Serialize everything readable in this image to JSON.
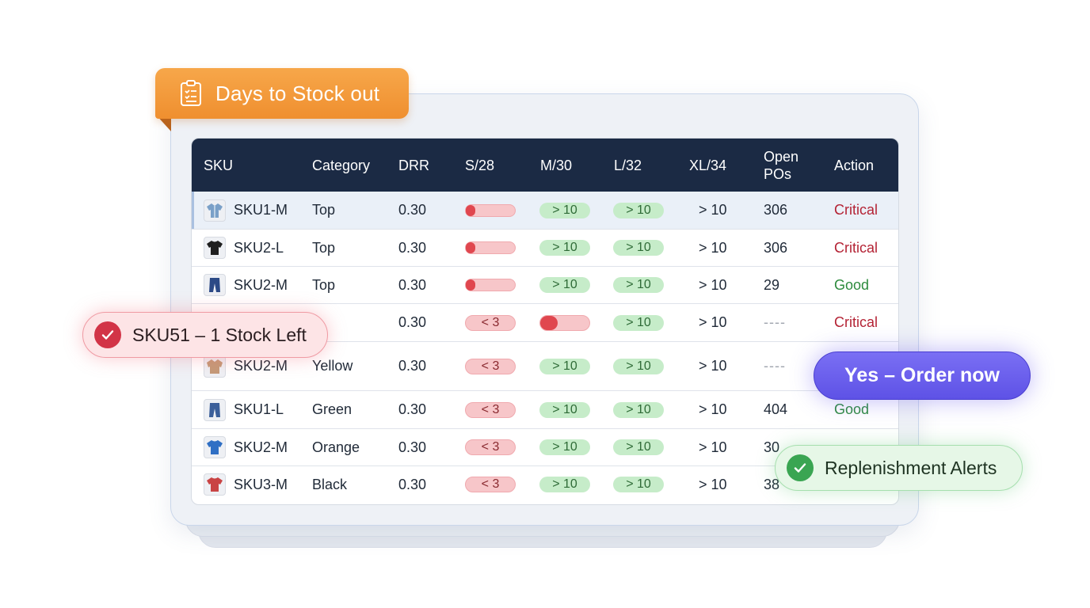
{
  "header": {
    "title": "Days to Stock out"
  },
  "table": {
    "columns": [
      "SKU",
      "Category",
      "DRR",
      "S/28",
      "M/30",
      "L/32",
      "XL/34",
      "Open POs",
      "Action"
    ],
    "columns_open_pos": [
      "Open",
      "POs"
    ],
    "rows": [
      {
        "sku": "SKU1-M",
        "icon": "shirt-icon",
        "icon_color": "#7aa0c8",
        "category": "Top",
        "drr": "0.30",
        "s28": {
          "kind": "bar",
          "fill": 0.2
        },
        "m30": {
          "kind": "pill",
          "tone": "green",
          "text": "> 10"
        },
        "l32": {
          "kind": "pill",
          "tone": "green",
          "text": "> 10"
        },
        "xl34": "> 10",
        "open_pos": "306",
        "action": "Critical",
        "action_tone": "critical"
      },
      {
        "sku": "SKU2-L",
        "icon": "tshirt-icon",
        "icon_color": "#1f1f1f",
        "category": "Top",
        "drr": "0.30",
        "s28": {
          "kind": "bar",
          "fill": 0.2
        },
        "m30": {
          "kind": "pill",
          "tone": "green",
          "text": "> 10"
        },
        "l32": {
          "kind": "pill",
          "tone": "green",
          "text": "> 10"
        },
        "xl34": "> 10",
        "open_pos": "306",
        "action": "Critical",
        "action_tone": "critical"
      },
      {
        "sku": "SKU2-M",
        "icon": "jeans-icon",
        "icon_color": "#2c4a86",
        "category": "Top",
        "drr": "0.30",
        "s28": {
          "kind": "bar",
          "fill": 0.2
        },
        "m30": {
          "kind": "pill",
          "tone": "green",
          "text": "> 10"
        },
        "l32": {
          "kind": "pill",
          "tone": "green",
          "text": "> 10"
        },
        "xl34": "> 10",
        "open_pos": "29",
        "action": "Good",
        "action_tone": "good"
      },
      {
        "sku": "",
        "icon": "",
        "icon_color": "",
        "category": "",
        "drr": "0.30",
        "s28": {
          "kind": "pill",
          "tone": "red",
          "text": "< 3"
        },
        "m30": {
          "kind": "bar",
          "fill": 0.35
        },
        "l32": {
          "kind": "pill",
          "tone": "green",
          "text": "> 10"
        },
        "xl34": "> 10",
        "open_pos": "----",
        "action": "Critical",
        "action_tone": "critical"
      },
      {
        "sku": "SKU2-M",
        "icon": "jacket-icon",
        "icon_color": "#c49a78",
        "category": "Yellow",
        "drr": "0.30",
        "s28": {
          "kind": "pill",
          "tone": "red",
          "text": "< 3"
        },
        "m30": {
          "kind": "pill",
          "tone": "green",
          "text": "> 10"
        },
        "l32": {
          "kind": "pill",
          "tone": "green",
          "text": "> 10"
        },
        "xl34": "> 10",
        "open_pos": "----",
        "action": "",
        "action_tone": ""
      },
      {
        "sku": "SKU1-L",
        "icon": "jeans-icon",
        "icon_color": "#3b5f9a",
        "category": "Green",
        "drr": "0.30",
        "s28": {
          "kind": "pill",
          "tone": "red",
          "text": "< 3"
        },
        "m30": {
          "kind": "pill",
          "tone": "green",
          "text": "> 10"
        },
        "l32": {
          "kind": "pill",
          "tone": "green",
          "text": "> 10"
        },
        "xl34": "> 10",
        "open_pos": "404",
        "action": "Good",
        "action_tone": "good"
      },
      {
        "sku": "SKU2-M",
        "icon": "tshirt-icon",
        "icon_color": "#2f6fc4",
        "category": "Orange",
        "drr": "0.30",
        "s28": {
          "kind": "pill",
          "tone": "red",
          "text": "< 3"
        },
        "m30": {
          "kind": "pill",
          "tone": "green",
          "text": "> 10"
        },
        "l32": {
          "kind": "pill",
          "tone": "green",
          "text": "> 10"
        },
        "xl34": "> 10",
        "open_pos": "30",
        "action": "",
        "action_tone": ""
      },
      {
        "sku": "SKU3-M",
        "icon": "tshirt-icon",
        "icon_color": "#c94444",
        "category": "Black",
        "drr": "0.30",
        "s28": {
          "kind": "pill",
          "tone": "red",
          "text": "< 3"
        },
        "m30": {
          "kind": "pill",
          "tone": "green",
          "text": "> 10"
        },
        "l32": {
          "kind": "pill",
          "tone": "green",
          "text": "> 10"
        },
        "xl34": "> 10",
        "open_pos": "38",
        "action": "",
        "action_tone": ""
      }
    ]
  },
  "badges": {
    "stock_alert": "SKU51 – 1 Stock Left",
    "order_button": "Yes – Order now",
    "replenishment": "Replenishment Alerts"
  },
  "colors": {
    "header_bg": "#1b2a44",
    "ribbon": "#ef8f2f",
    "critical": "#b42335",
    "good": "#2e8b3e",
    "order_button": "#5e52e6"
  }
}
